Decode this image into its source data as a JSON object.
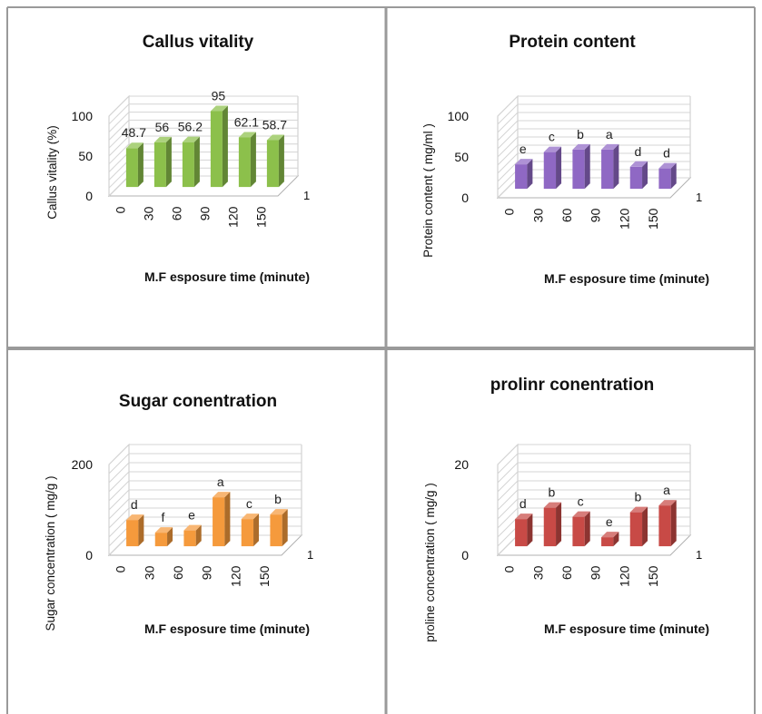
{
  "chart_data": [
    {
      "type": "bar",
      "title": "Callus vitality",
      "xlabel": "M.F esposure time (minute)",
      "ylabel": "Callus vitality (%)",
      "categories": [
        "0",
        "30",
        "60",
        "90",
        "120",
        "150"
      ],
      "values": [
        48.7,
        56,
        56.2,
        95,
        62.1,
        58.7
      ],
      "data_labels": [
        "48.7",
        "56",
        "56.2",
        "95",
        "62.1",
        "58.7"
      ],
      "yticks": [
        "0",
        "50",
        "100"
      ],
      "ylim": [
        0,
        100
      ],
      "depth_label": "1",
      "color": "#8cc04b",
      "style": "3d-column",
      "grid": true
    },
    {
      "type": "bar",
      "title": "Protein content",
      "xlabel": "M.F esposure time (minute)",
      "ylabel": "Protein content ( mg/ml )",
      "categories": [
        "0",
        "30",
        "60",
        "90",
        "120",
        "150"
      ],
      "values": [
        30,
        45,
        48,
        48,
        27,
        25
      ],
      "data_labels": [
        "e",
        "c",
        "b",
        "a",
        "d",
        "d"
      ],
      "yticks": [
        "0",
        "50",
        "100"
      ],
      "ylim": [
        0,
        100
      ],
      "depth_label": "1",
      "color": "#8f68c4",
      "style": "3d-column",
      "grid": true
    },
    {
      "type": "bar",
      "title": "Sugar conentration",
      "xlabel": "M.F esposure time (minute)",
      "ylabel": "Sugar concentration ( mg/g )",
      "categories": [
        "0",
        "30",
        "60",
        "90",
        "120",
        "150"
      ],
      "values": [
        58,
        30,
        35,
        108,
        60,
        70
      ],
      "data_labels": [
        "d",
        "f",
        "e",
        "a",
        "c",
        "b"
      ],
      "yticks": [
        "0",
        "200"
      ],
      "ylim": [
        0,
        200
      ],
      "depth_label": "1",
      "color": "#f59a3c",
      "style": "3d-column",
      "grid": true
    },
    {
      "type": "bar",
      "title": "prolinr conentration",
      "xlabel": "M.F esposure time (minute)",
      "ylabel": "proline concentration ( mg/g )",
      "categories": [
        "0",
        "30",
        "60",
        "90",
        "120",
        "150"
      ],
      "values": [
        6,
        8.5,
        6.5,
        2,
        7.5,
        9
      ],
      "data_labels": [
        "d",
        "b",
        "c",
        "e",
        "b",
        "a"
      ],
      "yticks": [
        "0",
        "20"
      ],
      "ylim": [
        0,
        20
      ],
      "depth_label": "1",
      "color": "#c84a46",
      "style": "3d-column",
      "grid": true
    }
  ]
}
